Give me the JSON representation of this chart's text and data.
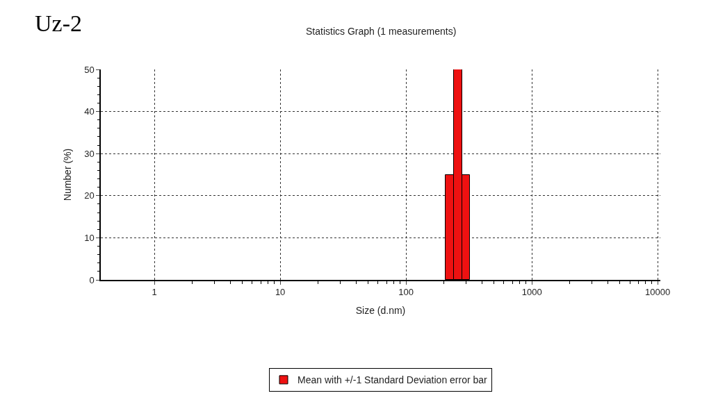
{
  "chart_data": {
    "type": "histogram",
    "title": "Uz-2",
    "subtitle": "Statistics Graph (1 measurements)",
    "xlabel": "Size (d.nm)",
    "ylabel": "Number (%)",
    "bins": [
      206,
      240,
      280,
      320
    ],
    "series": [
      {
        "name": "Mean with +/-1 Standard Deviation error bar",
        "color": "#ee1111",
        "values": [
          25,
          50,
          25
        ]
      }
    ],
    "log": "x",
    "xlim": [
      0.375,
      10500
    ],
    "xticks": [
      1,
      10,
      100,
      1000,
      10000
    ],
    "ylim": [
      0,
      50
    ],
    "yticks": [
      0,
      10,
      20,
      30,
      40,
      50
    ],
    "grid": true,
    "legend": "bottom"
  }
}
